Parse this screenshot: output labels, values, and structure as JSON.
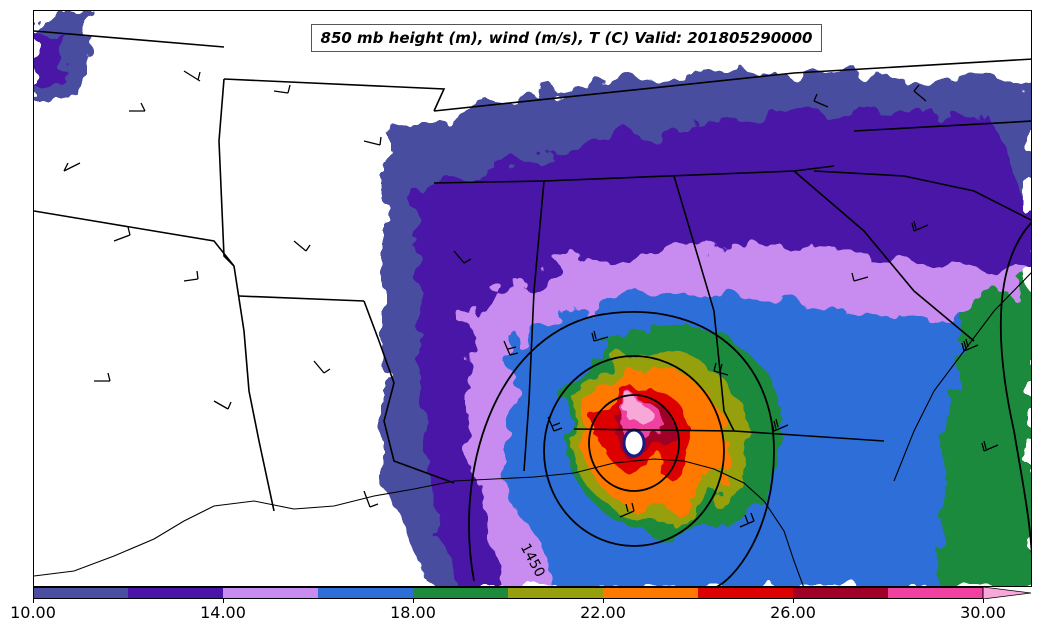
{
  "map": {
    "title": "850 mb height (m), wind (m/s), T (C) Valid: 201805290000",
    "contour_label": "1450",
    "variables": [
      "850 mb height (m)",
      "wind (m/s)",
      "T (C)"
    ],
    "valid_time": "201805290000"
  },
  "colorbar": {
    "tick_labels": [
      "10.00",
      "14.00",
      "18.00",
      "22.00",
      "26.00",
      "30.00"
    ],
    "min": 10,
    "max": 31,
    "step": 2,
    "colors": [
      "#4a4ea0",
      "#4a14a8",
      "#c88cf0",
      "#2e6ed8",
      "#1e8a3c",
      "#96a00e",
      "#ff7800",
      "#dc0000",
      "#a00028",
      "#f040a0"
    ],
    "extend_color": "#f8a8d8"
  }
}
